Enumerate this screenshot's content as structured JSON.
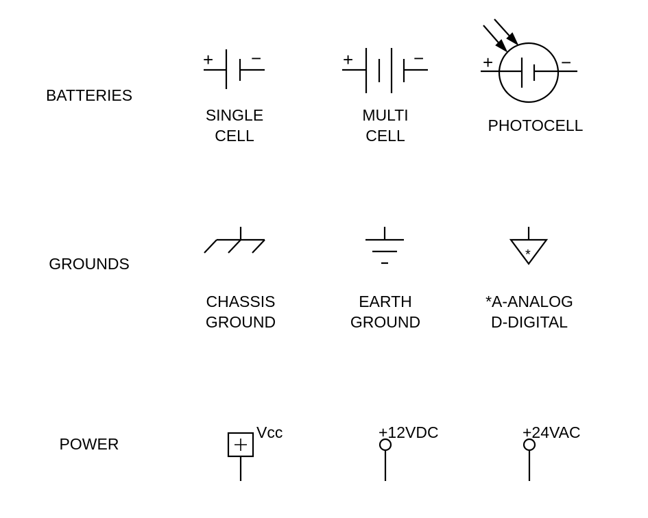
{
  "rows": {
    "batteries": "BATTERIES",
    "grounds": "GROUNDS",
    "power": "POWER"
  },
  "batteries": {
    "single_cell": [
      "SINGLE",
      "CELL"
    ],
    "multi_cell": [
      "MULTI",
      "CELL"
    ],
    "photocell": "PHOTOCELL",
    "plus": "+",
    "minus": "−"
  },
  "grounds": {
    "chassis": [
      "CHASSIS",
      "GROUND"
    ],
    "earth": [
      "EARTH",
      "GROUND"
    ],
    "signal_note": [
      "*A-ANALOG",
      "D-DIGITAL"
    ],
    "signal_marker": "*"
  },
  "power": {
    "vcc": "Vcc",
    "dc": "+12VDC",
    "ac": "+24VAC",
    "box_plus": "+"
  }
}
